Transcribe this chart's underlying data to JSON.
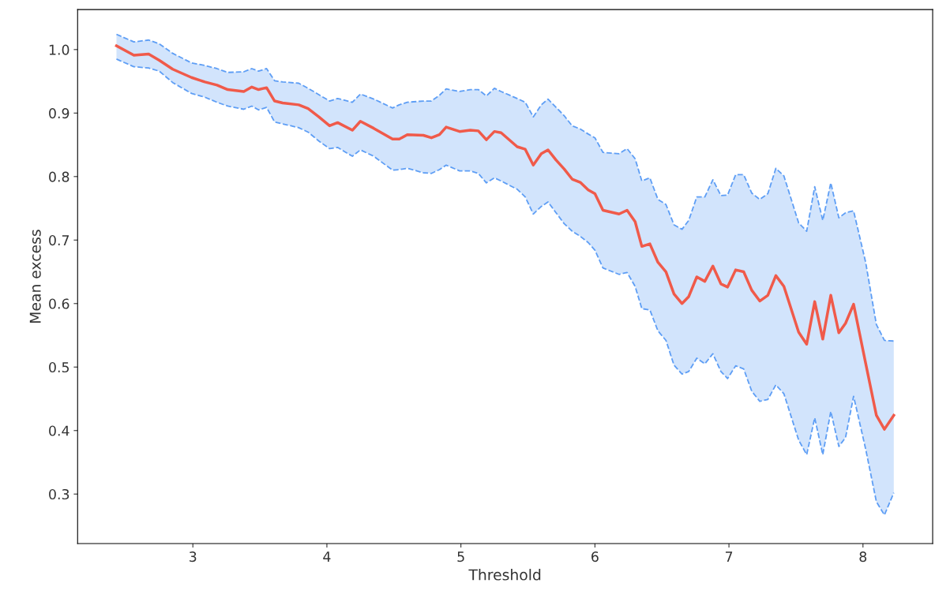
{
  "chart_data": {
    "type": "line",
    "xlabel": "Threshold",
    "ylabel": "Mean excess",
    "x": [
      2.43,
      2.56,
      2.67,
      2.75,
      2.85,
      2.99,
      3.09,
      3.18,
      3.26,
      3.38,
      3.44,
      3.49,
      3.55,
      3.61,
      3.67,
      3.79,
      3.86,
      3.94,
      4.02,
      4.08,
      4.19,
      4.25,
      4.35,
      4.49,
      4.54,
      4.6,
      4.72,
      4.78,
      4.84,
      4.89,
      4.99,
      5.07,
      5.13,
      5.19,
      5.25,
      5.3,
      5.42,
      5.48,
      5.54,
      5.6,
      5.65,
      5.71,
      5.77,
      5.83,
      5.89,
      5.95,
      6.0,
      6.06,
      6.18,
      6.24,
      6.3,
      6.35,
      6.41,
      6.47,
      6.53,
      6.59,
      6.65,
      6.7,
      6.76,
      6.82,
      6.88,
      6.94,
      6.99,
      7.05,
      7.11,
      7.17,
      7.23,
      7.29,
      7.35,
      7.41,
      7.52,
      7.58,
      7.64,
      7.7,
      7.76,
      7.82,
      7.87,
      7.93,
      8.02,
      8.1,
      8.16,
      8.23
    ],
    "series": [
      {
        "color": "#f05a4a",
        "line_style": "solid",
        "values": [
          1.006,
          0.991,
          0.993,
          0.983,
          0.969,
          0.956,
          0.949,
          0.944,
          0.937,
          0.934,
          0.941,
          0.937,
          0.94,
          0.919,
          0.916,
          0.913,
          0.907,
          0.894,
          0.88,
          0.885,
          0.873,
          0.887,
          0.876,
          0.859,
          0.859,
          0.866,
          0.865,
          0.861,
          0.866,
          0.878,
          0.871,
          0.873,
          0.872,
          0.858,
          0.871,
          0.869,
          0.847,
          0.843,
          0.818,
          0.836,
          0.842,
          0.826,
          0.812,
          0.796,
          0.791,
          0.779,
          0.773,
          0.747,
          0.741,
          0.747,
          0.729,
          0.69,
          0.694,
          0.665,
          0.65,
          0.615,
          0.6,
          0.611,
          0.642,
          0.635,
          0.659,
          0.631,
          0.626,
          0.653,
          0.65,
          0.621,
          0.604,
          0.613,
          0.644,
          0.627,
          0.555,
          0.536,
          0.603,
          0.544,
          0.613,
          0.554,
          0.569,
          0.599,
          0.506,
          0.424,
          0.402,
          0.424
        ],
        "upper": [
          1.024,
          1.012,
          1.015,
          1.009,
          0.994,
          0.979,
          0.975,
          0.97,
          0.964,
          0.965,
          0.97,
          0.966,
          0.97,
          0.951,
          0.949,
          0.947,
          0.939,
          0.929,
          0.919,
          0.923,
          0.917,
          0.93,
          0.922,
          0.908,
          0.913,
          0.917,
          0.919,
          0.919,
          0.928,
          0.938,
          0.934,
          0.937,
          0.937,
          0.927,
          0.939,
          0.934,
          0.923,
          0.917,
          0.894,
          0.913,
          0.922,
          0.909,
          0.896,
          0.88,
          0.875,
          0.867,
          0.861,
          0.838,
          0.836,
          0.844,
          0.828,
          0.793,
          0.798,
          0.764,
          0.756,
          0.724,
          0.717,
          0.731,
          0.768,
          0.768,
          0.795,
          0.77,
          0.771,
          0.803,
          0.803,
          0.774,
          0.764,
          0.773,
          0.813,
          0.801,
          0.727,
          0.714,
          0.784,
          0.731,
          0.79,
          0.735,
          0.743,
          0.746,
          0.665,
          0.567,
          0.542,
          0.541
        ],
        "lower": [
          0.985,
          0.973,
          0.971,
          0.966,
          0.948,
          0.931,
          0.925,
          0.917,
          0.911,
          0.906,
          0.911,
          0.905,
          0.909,
          0.886,
          0.883,
          0.877,
          0.87,
          0.856,
          0.844,
          0.846,
          0.832,
          0.842,
          0.832,
          0.81,
          0.811,
          0.813,
          0.806,
          0.805,
          0.811,
          0.818,
          0.809,
          0.809,
          0.805,
          0.79,
          0.798,
          0.793,
          0.78,
          0.768,
          0.741,
          0.753,
          0.76,
          0.743,
          0.726,
          0.714,
          0.706,
          0.696,
          0.684,
          0.656,
          0.646,
          0.649,
          0.627,
          0.592,
          0.59,
          0.557,
          0.542,
          0.503,
          0.489,
          0.493,
          0.514,
          0.505,
          0.521,
          0.493,
          0.482,
          0.502,
          0.497,
          0.462,
          0.446,
          0.449,
          0.472,
          0.458,
          0.385,
          0.362,
          0.42,
          0.362,
          0.43,
          0.375,
          0.389,
          0.454,
          0.371,
          0.288,
          0.267,
          0.302
        ]
      },
      {
        "color": "#5e9ef5",
        "line_style": "dashed",
        "values": [
          1.024,
          1.012,
          1.015,
          1.009,
          0.994,
          0.979,
          0.975,
          0.97,
          0.964,
          0.965,
          0.97,
          0.966,
          0.97,
          0.951,
          0.949,
          0.947,
          0.939,
          0.929,
          0.919,
          0.923,
          0.917,
          0.93,
          0.922,
          0.908,
          0.913,
          0.917,
          0.919,
          0.919,
          0.928,
          0.938,
          0.934,
          0.937,
          0.937,
          0.927,
          0.939,
          0.934,
          0.923,
          0.917,
          0.894,
          0.913,
          0.922,
          0.909,
          0.896,
          0.88,
          0.875,
          0.867,
          0.861,
          0.838,
          0.836,
          0.844,
          0.828,
          0.793,
          0.798,
          0.764,
          0.756,
          0.724,
          0.717,
          0.731,
          0.768,
          0.768,
          0.795,
          0.77,
          0.771,
          0.803,
          0.803,
          0.774,
          0.764,
          0.773,
          0.813,
          0.801,
          0.727,
          0.714,
          0.784,
          0.731,
          0.79,
          0.735,
          0.743,
          0.746,
          0.665,
          0.567,
          0.542,
          0.541
        ]
      },
      {
        "color": "#5e9ef5",
        "line_style": "dashed",
        "values": [
          0.985,
          0.973,
          0.971,
          0.966,
          0.948,
          0.931,
          0.925,
          0.917,
          0.911,
          0.906,
          0.911,
          0.905,
          0.909,
          0.886,
          0.883,
          0.877,
          0.87,
          0.856,
          0.844,
          0.846,
          0.832,
          0.842,
          0.832,
          0.81,
          0.811,
          0.813,
          0.806,
          0.805,
          0.811,
          0.818,
          0.809,
          0.809,
          0.805,
          0.79,
          0.798,
          0.793,
          0.78,
          0.768,
          0.741,
          0.753,
          0.76,
          0.743,
          0.726,
          0.714,
          0.706,
          0.696,
          0.684,
          0.656,
          0.646,
          0.649,
          0.627,
          0.592,
          0.59,
          0.557,
          0.542,
          0.503,
          0.489,
          0.493,
          0.514,
          0.505,
          0.521,
          0.493,
          0.482,
          0.502,
          0.497,
          0.462,
          0.446,
          0.449,
          0.472,
          0.458,
          0.385,
          0.362,
          0.42,
          0.362,
          0.43,
          0.375,
          0.389,
          0.454,
          0.371,
          0.288,
          0.267,
          0.302
        ]
      }
    ],
    "xlim": [
      2.14,
      8.52
    ],
    "ylim": [
      0.222,
      1.063
    ],
    "xticks": [
      3,
      4,
      5,
      6,
      7,
      8
    ],
    "yticks": [
      0.3,
      0.4,
      0.5,
      0.6,
      0.7,
      0.8,
      0.9,
      {
        "value": 1,
        "label": "1.0"
      }
    ],
    "grid": false,
    "marker": "none"
  }
}
